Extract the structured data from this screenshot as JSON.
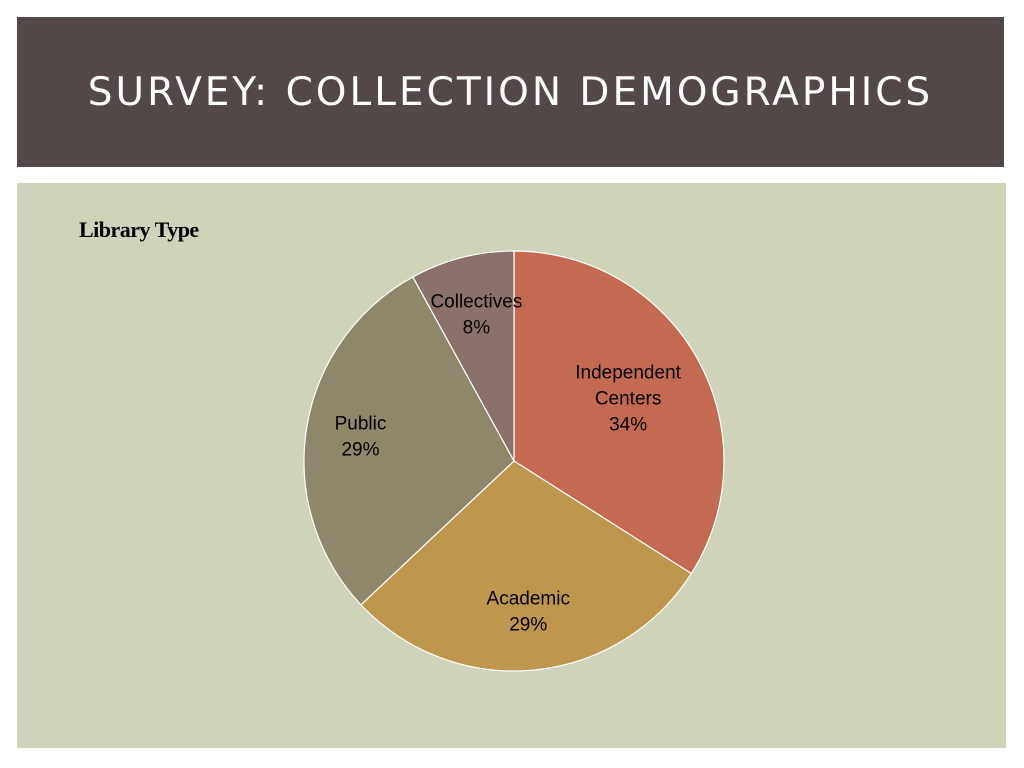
{
  "slide": {
    "title": "SURVEY: COLLECTION DEMOGRAPHICS"
  },
  "chart_data": {
    "type": "pie",
    "title": "Library Type",
    "slices": [
      {
        "label": "Independent Centers",
        "value": 34,
        "value_label": "34%",
        "color": "#c46a51"
      },
      {
        "label": "Academic",
        "value": 29,
        "value_label": "29%",
        "color": "#bf964e"
      },
      {
        "label": "Public",
        "value": 29,
        "value_label": "29%",
        "color": "#8f876c"
      },
      {
        "label": "Collectives",
        "value": 8,
        "value_label": "8%",
        "color": "#8a716b"
      }
    ],
    "start": "12 o'clock",
    "direction": "clockwise",
    "legend": "none"
  }
}
